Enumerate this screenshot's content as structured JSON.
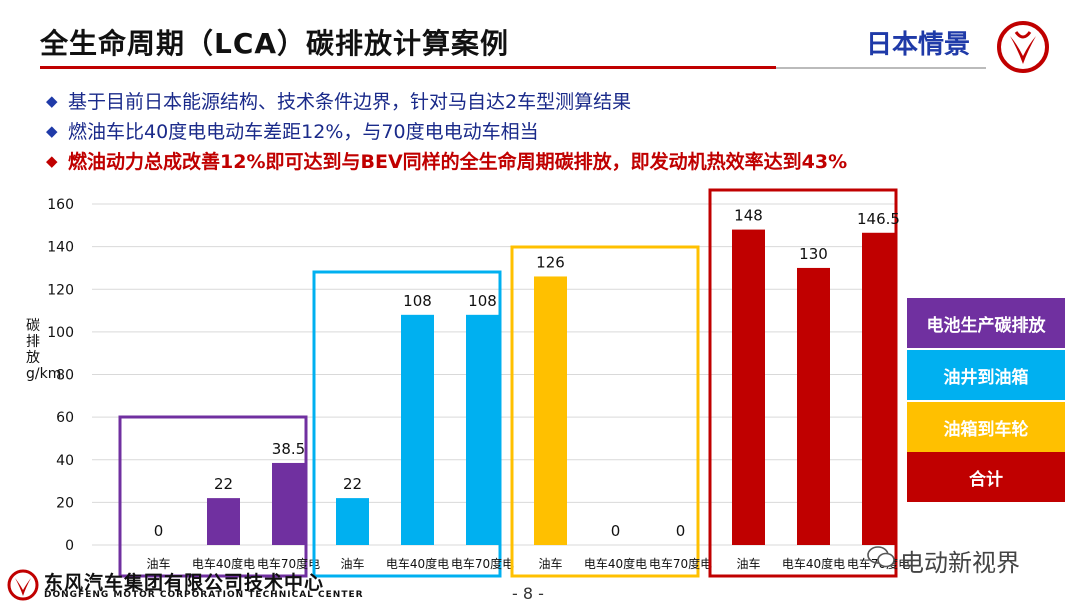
{
  "header": {
    "title": "全生命周期（LCA）碳排放计算案例",
    "scenario": "日本情景"
  },
  "bullets": [
    {
      "text": "基于目前日本能源结构、技术条件边界，针对马自达2车型测算结果",
      "highlight": false
    },
    {
      "text": "燃油车比40度电电动车差距12%，与70度电电动车相当",
      "highlight": false
    },
    {
      "text": "燃油动力总成改善12%即可达到与BEV同样的全生命周期碳排放，即发动机热效率达到43%",
      "highlight": true
    }
  ],
  "legend": [
    {
      "label": "电池生产碳排放",
      "color": "#7030a0"
    },
    {
      "label": "油井到油箱",
      "color": "#00b0f0"
    },
    {
      "label": "油箱到车轮",
      "color": "#ffc000"
    },
    {
      "label": "合计",
      "color": "#c00000"
    }
  ],
  "chart_data": {
    "type": "bar",
    "ylabel": "碳排放g/km",
    "ylim": [
      0,
      160
    ],
    "yticks": [
      "0",
      "20",
      "40",
      "60",
      "80",
      "100",
      "120",
      "140",
      "160"
    ],
    "groups": [
      {
        "name": "电池生产碳排放",
        "color": "#7030a0",
        "categories": [
          "油车",
          "电车40度电",
          "电车70度电"
        ],
        "values": [
          0,
          22,
          38.5
        ],
        "labels": [
          "0",
          "22",
          "38.5"
        ]
      },
      {
        "name": "油井到油箱",
        "color": "#00b0f0",
        "categories": [
          "油车",
          "电车40度电",
          "电车70度电"
        ],
        "values": [
          22,
          108,
          108
        ],
        "labels": [
          "22",
          "108",
          "108"
        ]
      },
      {
        "name": "油箱到车轮",
        "color": "#ffc000",
        "categories": [
          "油车",
          "电车40度电",
          "电车70度电"
        ],
        "values": [
          126,
          0,
          0
        ],
        "labels": [
          "126",
          "0",
          "0"
        ]
      },
      {
        "name": "合计",
        "color": "#c00000",
        "categories": [
          "油车",
          "电车40度电",
          "电车70度电"
        ],
        "values": [
          148,
          130,
          146.5
        ],
        "labels": [
          "148",
          "130",
          "146.5"
        ]
      }
    ]
  },
  "footer": {
    "company_cn": "东风汽车集团有限公司技术中心",
    "company_en": "DONGFENG MOTOR CORPORATION TECHNICAL CENTER",
    "page": "- 8 -",
    "watermark": "电动新视界"
  }
}
